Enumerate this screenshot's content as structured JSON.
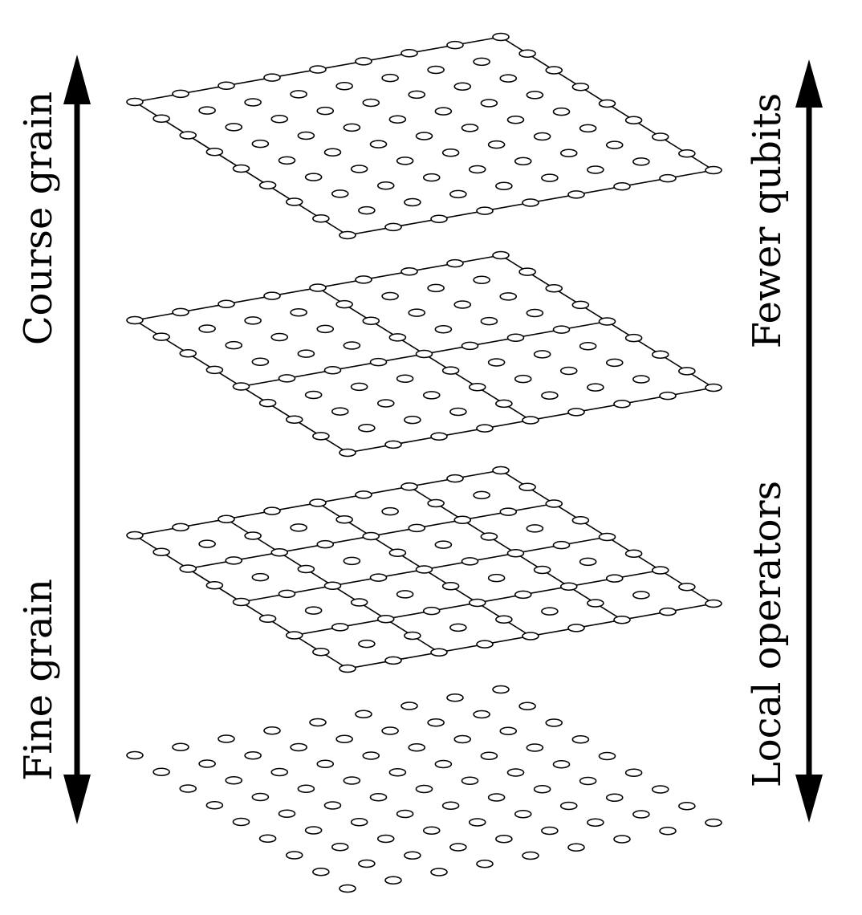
{
  "labels": {
    "left_top": "Course grain",
    "left_bottom": "Fine grain",
    "right_top": "Fewer qubits",
    "right_bottom": "Local operators"
  },
  "colors": {
    "ink": "#000000",
    "background": "#ffffff"
  },
  "layers": [
    {
      "id": "layer-1",
      "grid_points": 9,
      "block_size": 0
    },
    {
      "id": "layer-2",
      "grid_points": 9,
      "block_size": 2
    },
    {
      "id": "layer-3",
      "grid_points": 9,
      "block_size": 4
    },
    {
      "id": "layer-4",
      "grid_points": 9,
      "block_size": 8
    }
  ]
}
